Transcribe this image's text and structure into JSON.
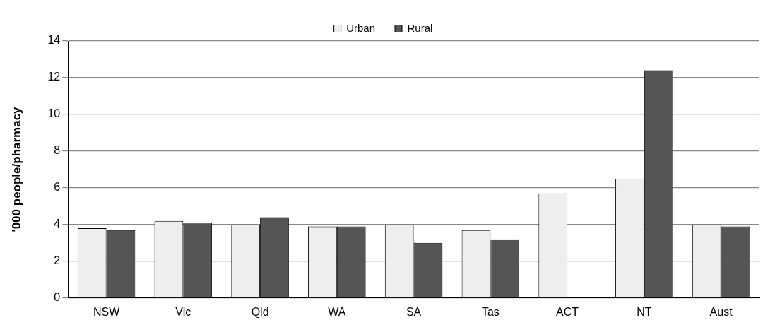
{
  "chart_data": {
    "type": "bar",
    "ylabel": "'000 people/pharmacy",
    "categories": [
      "NSW",
      "Vic",
      "Qld",
      "WA",
      "SA",
      "Tas",
      "ACT",
      "NT",
      "Aust"
    ],
    "series": [
      {
        "name": "Urban",
        "color": "#eeeeee",
        "values": [
          3.8,
          4.2,
          4.0,
          3.9,
          4.0,
          3.7,
          5.7,
          6.5,
          4.0
        ]
      },
      {
        "name": "Rural",
        "color": "#555555",
        "values": [
          3.7,
          4.1,
          4.4,
          3.9,
          3.0,
          3.2,
          null,
          12.4,
          3.9
        ]
      }
    ],
    "ylim": [
      0,
      14
    ],
    "yticks": [
      0,
      2,
      4,
      6,
      8,
      10,
      12,
      14
    ],
    "grid": "y",
    "legend": "top"
  }
}
